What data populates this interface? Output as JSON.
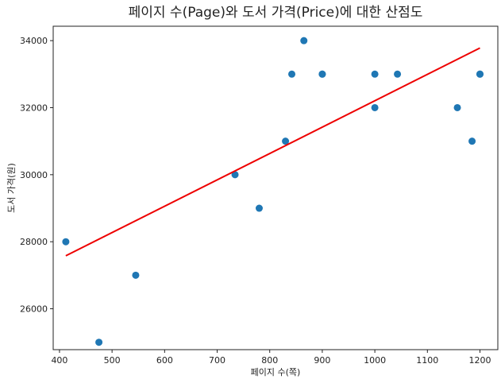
{
  "chart_data": {
    "type": "scatter",
    "title": "페이지 수(Page)와 도서 가격(Price)에 대한 산점도",
    "xlabel": "페이지 수(쪽)",
    "ylabel": "도서 가격(원)",
    "xlim": [
      388,
      1234
    ],
    "ylim": [
      24780,
      34430
    ],
    "xticks": [
      400,
      500,
      600,
      700,
      800,
      900,
      1000,
      1100,
      1200
    ],
    "yticks": [
      26000,
      28000,
      30000,
      32000,
      34000
    ],
    "x": [
      412,
      475,
      545,
      734,
      780,
      830,
      842,
      865,
      900,
      900,
      1000,
      1000,
      1043,
      1157,
      1185,
      1200,
      1200
    ],
    "y": [
      28000,
      25000,
      27000,
      30000,
      29000,
      31000,
      33000,
      34000,
      33000,
      33000,
      33000,
      32000,
      33000,
      32000,
      31000,
      33000,
      33000
    ],
    "point_color": "#1f77b4",
    "fit_line": {
      "x": [
        412,
        1200
      ],
      "y": [
        27580,
        33780
      ],
      "color": "#ee0000"
    },
    "grid": false,
    "legend": "none"
  }
}
